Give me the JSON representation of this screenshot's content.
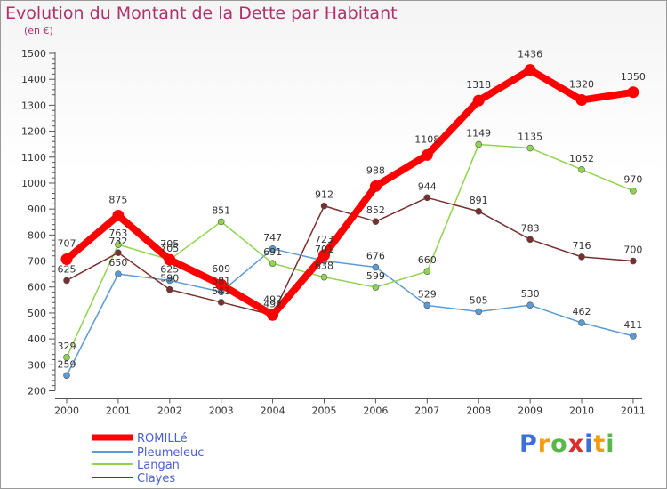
{
  "chart_data": {
    "type": "line",
    "title": "Evolution du Montant de la Dette par Habitant",
    "subtitle": "(en €)",
    "x": [
      "2000",
      "2001",
      "2002",
      "2003",
      "2004",
      "2005",
      "2006",
      "2007",
      "2008",
      "2009",
      "2010",
      "2011"
    ],
    "ylim": [
      200,
      1500
    ],
    "yticks": [
      200,
      300,
      400,
      500,
      600,
      700,
      800,
      900,
      1000,
      1100,
      1200,
      1300,
      1400,
      1500
    ],
    "grid": false,
    "legend_position": "bottom-left",
    "series": [
      {
        "name": "ROMILLé",
        "color": "#ff0000",
        "values": [
          707,
          875,
          705,
          609,
          492,
          723,
          988,
          1108,
          1318,
          1436,
          1320,
          1350
        ],
        "labels": [
          "707",
          "875",
          "705",
          "609",
          "492",
          "723",
          "988",
          "1108",
          "1318",
          "1436",
          "1320",
          "1350"
        ],
        "emphasis": true
      },
      {
        "name": "Pleumeleuc",
        "color": "#5b9bd5",
        "values": [
          259,
          650,
          625,
          581,
          747,
          701,
          676,
          529,
          505,
          530,
          462,
          411
        ],
        "labels": [
          "259",
          "650",
          "625",
          "581",
          "747",
          "701",
          "676",
          "529",
          "505",
          "530",
          "462",
          "411"
        ]
      },
      {
        "name": "Langan",
        "color": "#8fd44f",
        "values": [
          329,
          763,
          705,
          851,
          691,
          638,
          599,
          660,
          1149,
          1135,
          1052,
          970
        ],
        "labels": [
          "329",
          "763",
          "705",
          "851",
          "691",
          "638",
          "599",
          "660",
          "1149",
          "1135",
          "1052",
          "970"
        ]
      },
      {
        "name": "Clayes",
        "color": "#7a2f2f",
        "values": [
          625,
          732,
          590,
          541,
          492,
          912,
          852,
          944,
          891,
          783,
          716,
          700
        ],
        "labels": [
          "625",
          "732",
          "590",
          "541",
          "492",
          "912",
          "852",
          "944",
          "891",
          "783",
          "716",
          "700"
        ]
      }
    ]
  },
  "logo": {
    "letters": [
      "P",
      "r",
      "o",
      "x",
      "i",
      "t",
      "i"
    ],
    "colors": [
      "#3d6fd6",
      "#f39c12",
      "#57b947",
      "#e02b2b",
      "#3d6fd6",
      "#f39c12",
      "#57b947"
    ]
  }
}
